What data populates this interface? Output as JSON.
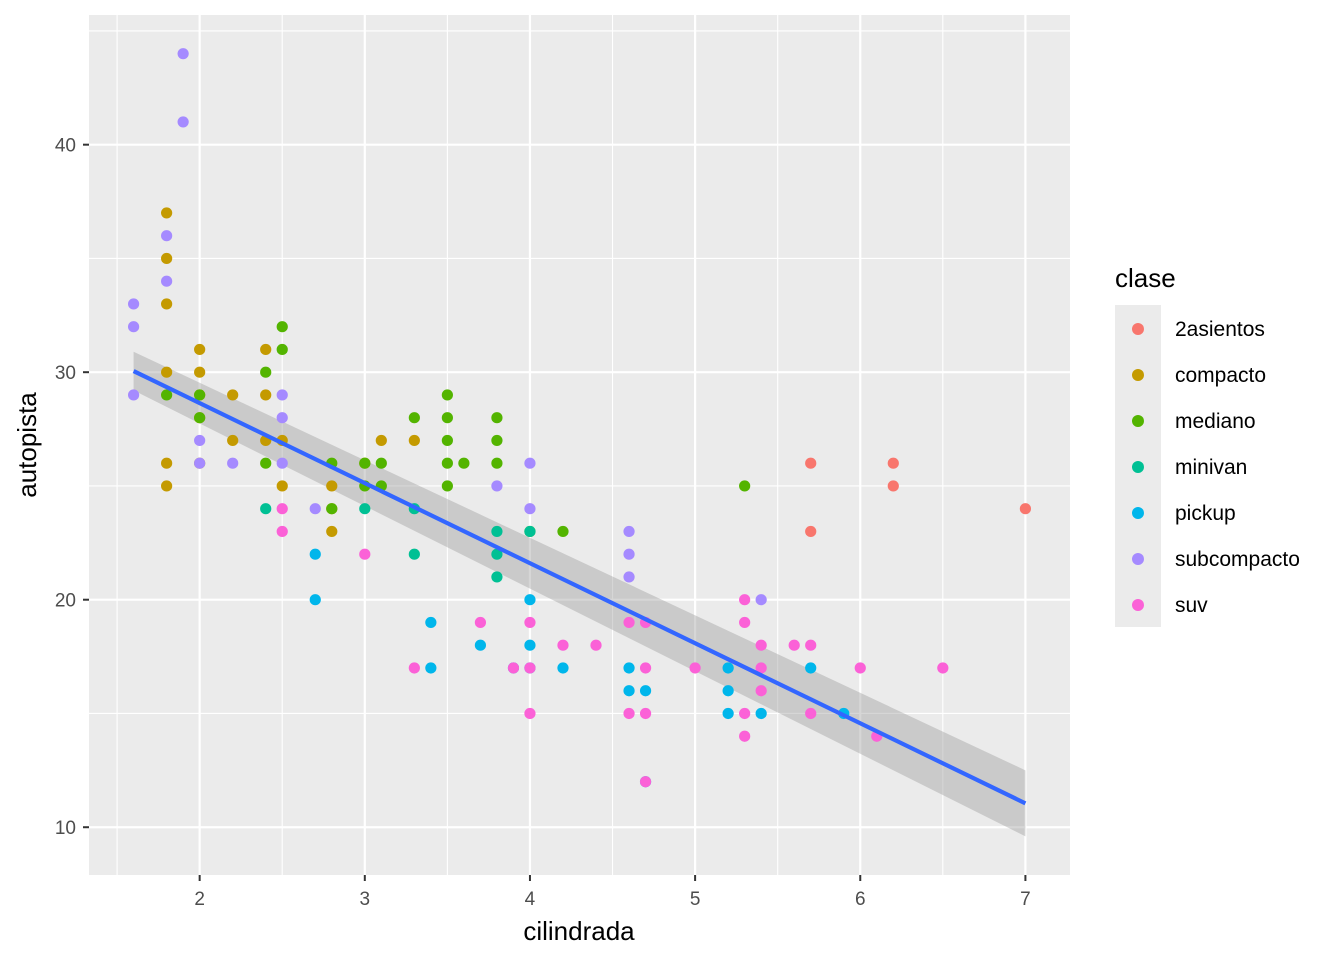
{
  "chart_data": {
    "type": "scatter",
    "xlabel": "cilindrada",
    "ylabel": "autopista",
    "xlim": [
      1.33,
      7.27
    ],
    "ylim": [
      7.9,
      45.7
    ],
    "x_ticks": [
      2,
      3,
      4,
      5,
      6,
      7
    ],
    "y_ticks": [
      10,
      20,
      30,
      40
    ],
    "grid": true,
    "legend": {
      "title": "clase",
      "position": "right"
    },
    "series": [
      {
        "name": "2asientos",
        "color": "#F8766D",
        "points": [
          [
            5.7,
            26
          ],
          [
            5.7,
            23
          ],
          [
            6.2,
            26
          ],
          [
            6.2,
            25
          ],
          [
            7.0,
            24
          ]
        ]
      },
      {
        "name": "compacto",
        "color": "#C49A00",
        "points": [
          [
            1.8,
            37
          ],
          [
            1.8,
            35
          ],
          [
            1.8,
            33
          ],
          [
            1.8,
            30
          ],
          [
            1.8,
            26
          ],
          [
            1.8,
            25
          ],
          [
            2.0,
            31
          ],
          [
            2.0,
            30
          ],
          [
            2.0,
            29
          ],
          [
            2.0,
            28
          ],
          [
            2.0,
            26
          ],
          [
            2.2,
            29
          ],
          [
            2.2,
            27
          ],
          [
            2.4,
            31
          ],
          [
            2.4,
            29
          ],
          [
            2.4,
            27
          ],
          [
            2.5,
            27
          ],
          [
            2.5,
            25
          ],
          [
            2.8,
            25
          ],
          [
            2.8,
            24
          ],
          [
            2.8,
            23
          ],
          [
            3.0,
            26
          ],
          [
            3.1,
            27
          ],
          [
            3.3,
            27
          ]
        ]
      },
      {
        "name": "mediano",
        "color": "#53B400",
        "points": [
          [
            1.8,
            29
          ],
          [
            2.0,
            29
          ],
          [
            2.0,
            28
          ],
          [
            2.4,
            30
          ],
          [
            2.4,
            26
          ],
          [
            2.5,
            32
          ],
          [
            2.5,
            31
          ],
          [
            2.8,
            26
          ],
          [
            2.8,
            24
          ],
          [
            3.0,
            26
          ],
          [
            3.0,
            25
          ],
          [
            3.1,
            26
          ],
          [
            3.1,
            25
          ],
          [
            3.3,
            28
          ],
          [
            3.5,
            29
          ],
          [
            3.5,
            28
          ],
          [
            3.5,
            27
          ],
          [
            3.5,
            26
          ],
          [
            3.5,
            25
          ],
          [
            3.6,
            26
          ],
          [
            3.8,
            28
          ],
          [
            3.8,
            27
          ],
          [
            3.8,
            26
          ],
          [
            4.0,
            23
          ],
          [
            4.2,
            23
          ],
          [
            5.3,
            25
          ]
        ]
      },
      {
        "name": "minivan",
        "color": "#00C094",
        "points": [
          [
            2.4,
            24
          ],
          [
            3.0,
            24
          ],
          [
            3.3,
            24
          ],
          [
            3.3,
            22
          ],
          [
            3.8,
            23
          ],
          [
            3.8,
            22
          ],
          [
            3.8,
            21
          ],
          [
            4.0,
            23
          ]
        ]
      },
      {
        "name": "pickup",
        "color": "#00B6EB",
        "points": [
          [
            2.7,
            22
          ],
          [
            2.7,
            20
          ],
          [
            3.4,
            19
          ],
          [
            3.4,
            17
          ],
          [
            3.7,
            18
          ],
          [
            3.9,
            17
          ],
          [
            4.0,
            20
          ],
          [
            4.0,
            18
          ],
          [
            4.0,
            17
          ],
          [
            4.2,
            17
          ],
          [
            4.6,
            17
          ],
          [
            4.6,
            16
          ],
          [
            4.7,
            16
          ],
          [
            4.7,
            12
          ],
          [
            5.2,
            17
          ],
          [
            5.2,
            16
          ],
          [
            5.2,
            15
          ],
          [
            5.4,
            15
          ],
          [
            5.7,
            17
          ],
          [
            5.9,
            15
          ]
        ]
      },
      {
        "name": "subcompacto",
        "color": "#A58AFF",
        "points": [
          [
            1.6,
            33
          ],
          [
            1.6,
            32
          ],
          [
            1.6,
            29
          ],
          [
            1.8,
            36
          ],
          [
            1.8,
            34
          ],
          [
            1.9,
            44
          ],
          [
            1.9,
            41
          ],
          [
            2.0,
            27
          ],
          [
            2.0,
            26
          ],
          [
            2.2,
            26
          ],
          [
            2.5,
            29
          ],
          [
            2.5,
            28
          ],
          [
            2.5,
            26
          ],
          [
            2.7,
            24
          ],
          [
            3.8,
            25
          ],
          [
            4.0,
            26
          ],
          [
            4.0,
            24
          ],
          [
            4.6,
            23
          ],
          [
            4.6,
            22
          ],
          [
            4.6,
            21
          ],
          [
            5.4,
            20
          ]
        ]
      },
      {
        "name": "suv",
        "color": "#FB61D7",
        "points": [
          [
            2.5,
            24
          ],
          [
            2.5,
            23
          ],
          [
            3.0,
            22
          ],
          [
            3.3,
            17
          ],
          [
            3.7,
            19
          ],
          [
            3.9,
            17
          ],
          [
            4.0,
            19
          ],
          [
            4.0,
            17
          ],
          [
            4.0,
            15
          ],
          [
            4.2,
            18
          ],
          [
            4.4,
            18
          ],
          [
            4.6,
            19
          ],
          [
            4.6,
            15
          ],
          [
            4.7,
            19
          ],
          [
            4.7,
            17
          ],
          [
            4.7,
            15
          ],
          [
            4.7,
            12
          ],
          [
            5.0,
            17
          ],
          [
            5.3,
            20
          ],
          [
            5.3,
            19
          ],
          [
            5.3,
            15
          ],
          [
            5.3,
            14
          ],
          [
            5.4,
            18
          ],
          [
            5.4,
            17
          ],
          [
            5.4,
            16
          ],
          [
            5.6,
            18
          ],
          [
            5.7,
            18
          ],
          [
            5.7,
            15
          ],
          [
            6.0,
            17
          ],
          [
            6.1,
            14
          ],
          [
            6.5,
            17
          ]
        ]
      }
    ],
    "smooth": {
      "method": "lm",
      "color": "#3366FF",
      "x": [
        1.6,
        7.0
      ],
      "y": [
        30.05,
        11.05
      ],
      "ribbon_lower": [
        29.2,
        9.6
      ],
      "ribbon_upper": [
        30.9,
        12.5
      ]
    }
  }
}
